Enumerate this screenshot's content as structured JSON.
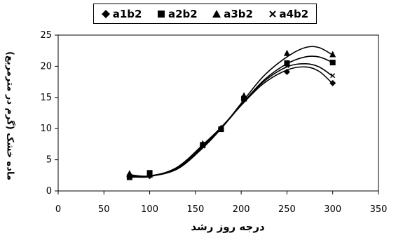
{
  "chart_data": {
    "type": "scatter",
    "title": "",
    "xlabel": "درجه روز رشد",
    "ylabel": "ماده خشک (گرم در مترمربع)",
    "xlim": [
      0,
      350
    ],
    "ylim": [
      0,
      25
    ],
    "x_ticks": [
      "0",
      "50",
      "100",
      "150",
      "200",
      "250",
      "300",
      "350"
    ],
    "y_ticks": [
      "0",
      "5",
      "10",
      "15",
      "20",
      "25"
    ],
    "grid": false,
    "legend_position": "top",
    "trendlines": true,
    "series": [
      {
        "name": "a1b2",
        "marker": "diamond",
        "x": [
          78,
          100,
          158,
          178,
          203,
          250,
          300
        ],
        "y": [
          2.3,
          2.4,
          7.3,
          10.0,
          14.7,
          19.1,
          17.3
        ],
        "fit": [
          [
            78,
            2.3
          ],
          [
            100,
            2.3
          ],
          [
            130,
            3.8
          ],
          [
            158,
            7.4
          ],
          [
            178,
            10.2
          ],
          [
            203,
            14.2
          ],
          [
            225,
            17.3
          ],
          [
            250,
            19.4
          ],
          [
            270,
            19.9
          ],
          [
            285,
            19.2
          ],
          [
            300,
            17.2
          ]
        ]
      },
      {
        "name": "a2b2",
        "marker": "square",
        "x": [
          78,
          100,
          158,
          178,
          203,
          250,
          300
        ],
        "y": [
          2.2,
          2.9,
          7.4,
          9.9,
          14.8,
          20.5,
          20.6
        ],
        "fit": [
          [
            78,
            2.2
          ],
          [
            100,
            2.4
          ],
          [
            130,
            3.6
          ],
          [
            158,
            7.0
          ],
          [
            178,
            10.0
          ],
          [
            203,
            14.3
          ],
          [
            225,
            17.8
          ],
          [
            250,
            20.4
          ],
          [
            270,
            21.5
          ],
          [
            285,
            21.5
          ],
          [
            300,
            20.6
          ]
        ]
      },
      {
        "name": "a3b2",
        "marker": "triangle",
        "x": [
          78,
          100,
          158,
          178,
          203,
          250,
          300
        ],
        "y": [
          2.8,
          2.6,
          7.6,
          10.1,
          15.3,
          22.1,
          21.9
        ],
        "fit": [
          [
            78,
            2.6
          ],
          [
            100,
            2.4
          ],
          [
            130,
            3.5
          ],
          [
            158,
            6.9
          ],
          [
            178,
            10.0
          ],
          [
            203,
            14.6
          ],
          [
            225,
            18.5
          ],
          [
            250,
            21.5
          ],
          [
            270,
            23.0
          ],
          [
            285,
            23.0
          ],
          [
            300,
            21.8
          ]
        ]
      },
      {
        "name": "a4b2",
        "marker": "x",
        "x": [
          78,
          100,
          158,
          178,
          203,
          250,
          300
        ],
        "y": [
          2.4,
          2.5,
          7.2,
          10.0,
          14.9,
          20.1,
          18.5
        ],
        "fit": [
          [
            78,
            2.4
          ],
          [
            100,
            2.4
          ],
          [
            130,
            3.7
          ],
          [
            158,
            7.2
          ],
          [
            178,
            10.1
          ],
          [
            203,
            14.3
          ],
          [
            225,
            17.6
          ],
          [
            250,
            19.9
          ],
          [
            270,
            20.4
          ],
          [
            285,
            19.9
          ],
          [
            300,
            18.4
          ]
        ]
      }
    ]
  }
}
